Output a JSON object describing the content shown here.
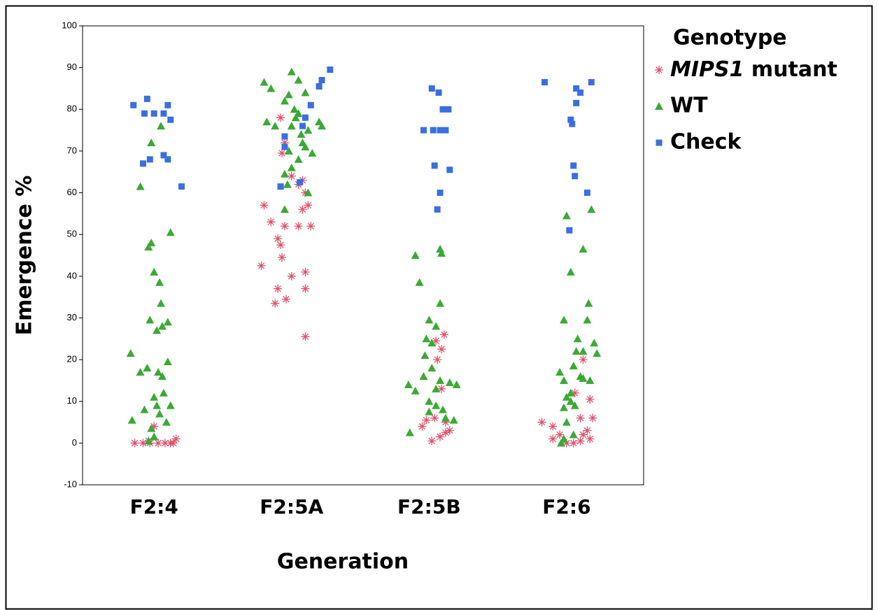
{
  "chart_data": {
    "type": "scatter",
    "x_label": "Generation",
    "y_label": "Emergence %",
    "legend_title": "Genotype",
    "legend": "right",
    "xlim": [
      0.48,
      4.56
    ],
    "ylim": [
      -10,
      100
    ],
    "xticks": [
      {
        "value": 1,
        "label": "F2:4"
      },
      {
        "value": 2,
        "label": "F2:5A"
      },
      {
        "value": 3,
        "label": "F2:5B"
      },
      {
        "value": 4,
        "label": "F2:6"
      }
    ],
    "yticks": [
      -10,
      0,
      10,
      20,
      30,
      40,
      50,
      60,
      70,
      80,
      90,
      100
    ],
    "series": [
      {
        "name": "MIPS1 mutant",
        "color": "#e0506a",
        "marker": "asterisk",
        "x": [
          0.86,
          0.92,
          0.97,
          1.0,
          1.03,
          1.08,
          1.12,
          1.16,
          1.14,
          0.96,
          1.92,
          1.95,
          1.93,
          2.0,
          2.05,
          2.08,
          2.1,
          2.12,
          1.8,
          1.85,
          1.95,
          2.05,
          2.14,
          1.9,
          1.92,
          1.93,
          1.78,
          2.0,
          2.1,
          1.9,
          2.1,
          1.96,
          1.88,
          2.1,
          2.08,
          3.11,
          3.09,
          3.06,
          3.09,
          3.04,
          3.12,
          2.95,
          2.98,
          3.02,
          3.08,
          3.12,
          3.15,
          3.05,
          3.82,
          3.9,
          3.95,
          3.9,
          4.0,
          4.05,
          4.1,
          4.12,
          4.15,
          4.17,
          4.17,
          4.19,
          4.12,
          4.06,
          4.1
        ],
        "values": [
          0,
          0,
          0,
          4,
          0,
          0,
          0,
          1,
          0,
          0.5,
          78,
          72,
          69.5,
          64,
          62,
          63,
          60,
          57,
          57,
          53,
          52,
          52,
          52,
          49,
          47.5,
          44.5,
          42.5,
          40,
          41,
          37,
          37,
          34.5,
          33.5,
          25.5,
          56,
          26,
          22.5,
          20,
          13,
          6,
          5,
          4,
          5.5,
          0.5,
          1.5,
          2.5,
          3,
          24.5,
          5,
          4,
          2,
          1,
          0,
          0,
          0.5,
          2,
          3,
          1,
          10.5,
          6,
          20,
          12,
          6
        ]
      },
      {
        "name": "WT",
        "color": "#3aaa35",
        "marker": "triangle",
        "x": [
          1.05,
          0.98,
          0.9,
          1.12,
          0.98,
          0.96,
          1.0,
          1.04,
          1.05,
          0.97,
          1.1,
          1.02,
          1.06,
          0.83,
          0.95,
          1.1,
          1.03,
          0.9,
          1.06,
          1.07,
          1.0,
          1.12,
          1.02,
          0.93,
          1.04,
          1.09,
          0.84,
          0.98,
          1.0,
          0.96,
          2.0,
          2.05,
          1.8,
          1.85,
          2.1,
          1.98,
          1.95,
          2.02,
          2.05,
          1.82,
          1.88,
          2.0,
          2.2,
          2.22,
          2.12,
          2.08,
          2.1,
          2.05,
          2.0,
          1.95,
          2.15,
          2.12,
          1.97,
          1.95,
          2.07,
          1.98,
          2.03,
          2.9,
          3.08,
          3.09,
          2.93,
          3.08,
          3.0,
          3.05,
          2.98,
          3.02,
          2.97,
          3.02,
          2.96,
          3.08,
          2.85,
          3.15,
          3.2,
          2.9,
          3.0,
          3.05,
          3.1,
          3.12,
          3.18,
          2.86,
          3.0,
          3.05,
          4.0,
          4.18,
          4.12,
          4.03,
          4.16,
          4.15,
          3.98,
          4.08,
          4.2,
          4.22,
          4.07,
          4.12,
          3.95,
          4.05,
          4.1,
          4.12,
          4.17,
          3.98,
          4.03,
          4.0,
          4.03,
          4.06,
          3.98,
          4.0,
          4.05,
          3.98,
          3.96
        ],
        "values": [
          76,
          72,
          61.5,
          50.5,
          48,
          47,
          41,
          38.5,
          33.5,
          29.5,
          29,
          27,
          28,
          21.5,
          18,
          19.5,
          17,
          17,
          16,
          12,
          11,
          9,
          9,
          8,
          7,
          5,
          5.5,
          3.5,
          1.5,
          0.5,
          89,
          87,
          86.5,
          85,
          84,
          83.5,
          82,
          80,
          79,
          77,
          76,
          76,
          77,
          76,
          75,
          72,
          71,
          68,
          66,
          64.5,
          69.5,
          60,
          62,
          56,
          74,
          70,
          78,
          45,
          46.5,
          45.5,
          38.5,
          33.5,
          29.5,
          28,
          25,
          24,
          21,
          18,
          16,
          15,
          14,
          14.5,
          14,
          12.5,
          10,
          9,
          8,
          6,
          5.5,
          2.5,
          7.5,
          13,
          54.5,
          56,
          46.5,
          41,
          33.5,
          29.5,
          29.5,
          25,
          24,
          21.5,
          22,
          22,
          17,
          18.5,
          16,
          15.5,
          15,
          15,
          12,
          11,
          10,
          9,
          8.5,
          5,
          2,
          1,
          0
        ]
      },
      {
        "name": "Check",
        "color": "#3a6fe0",
        "marker": "square",
        "x": [
          0.85,
          0.95,
          0.93,
          1.0,
          1.07,
          1.1,
          1.12,
          1.07,
          1.1,
          0.97,
          0.92,
          1.2,
          2.28,
          2.22,
          2.2,
          2.14,
          2.1,
          2.08,
          1.95,
          1.95,
          1.92,
          2.06,
          3.02,
          3.07,
          3.1,
          3.14,
          2.96,
          3.03,
          3.08,
          3.12,
          3.04,
          3.15,
          3.08,
          3.06,
          3.84,
          4.07,
          4.1,
          4.18,
          4.03,
          4.04,
          4.07,
          4.05,
          4.06,
          4.15,
          4.02
        ],
        "values": [
          81,
          82.5,
          79,
          79,
          79,
          81,
          77.5,
          69,
          68,
          68,
          67,
          61.5,
          89.5,
          87,
          85.5,
          81,
          78,
          76,
          73.5,
          71,
          61.5,
          62.5,
          85,
          84,
          80,
          80,
          75,
          75,
          75,
          75,
          66.5,
          65.5,
          60,
          56,
          86.5,
          85,
          84,
          86.5,
          77.5,
          76.5,
          81.5,
          66.5,
          64,
          60,
          51
        ]
      }
    ]
  }
}
